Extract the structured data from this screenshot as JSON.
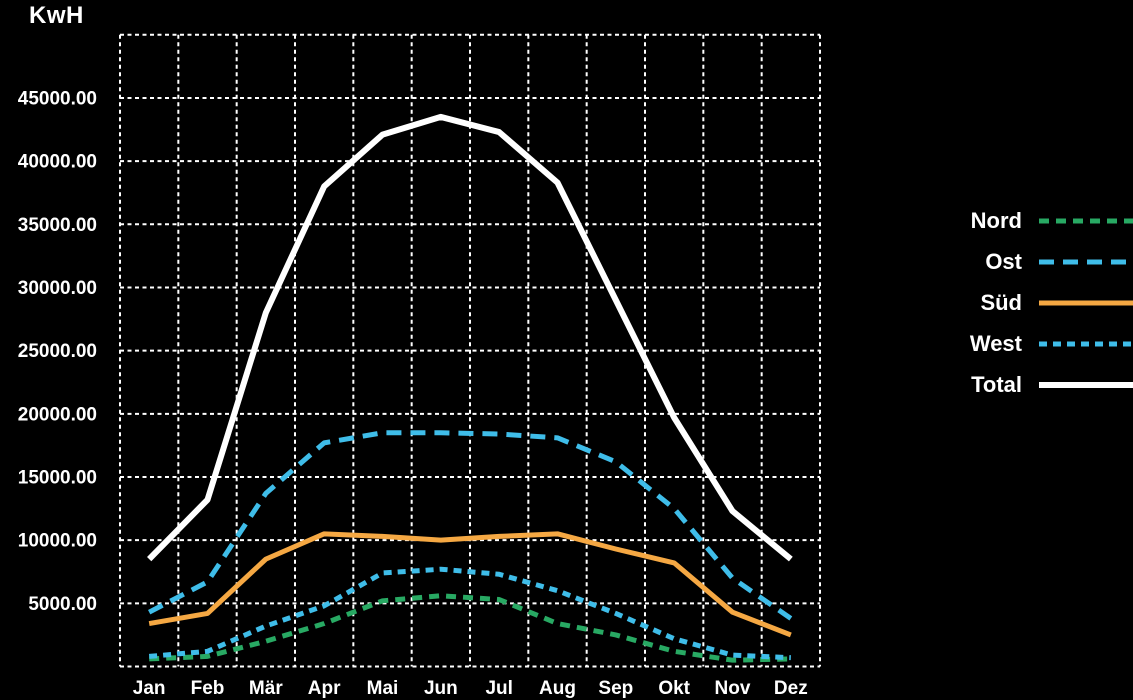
{
  "title": "KwH",
  "colors": {
    "background": "#000000",
    "grid": "#ffffff",
    "text": "#ffffff",
    "nord": "#28a963",
    "ost_west": "#3fbde9",
    "sued": "#f5a843",
    "total": "#ffffff"
  },
  "legend": {
    "position": "right",
    "entries": [
      "Nord",
      "Ost",
      "Süd",
      "West",
      "Total"
    ]
  },
  "chart_data": {
    "type": "line",
    "title": "KwH",
    "xlabel": "",
    "ylabel": "KwH",
    "grid": true,
    "grid_step": 5000,
    "ylim": [
      0,
      50000
    ],
    "x_categories": [
      "Jan",
      "Feb",
      "Mär",
      "Apr",
      "Mai",
      "Jun",
      "Jul",
      "Aug",
      "Sep",
      "Okt",
      "Nov",
      "Dez"
    ],
    "y_ticks": [
      "5000.00",
      "10000.00",
      "15000.00",
      "20000.00",
      "25000.00",
      "30000.00",
      "35000.00",
      "40000.00",
      "45000.00"
    ],
    "series": [
      {
        "name": "Nord",
        "color": "#28a963",
        "dash": "10 7",
        "width": 5,
        "values": [
          600,
          800,
          2000,
          3400,
          5200,
          5600,
          5300,
          3400,
          2500,
          1200,
          500,
          600
        ]
      },
      {
        "name": "Ost",
        "color": "#3fbde9",
        "dash": "15 9",
        "width": 5,
        "values": [
          4300,
          6700,
          13700,
          17700,
          18500,
          18500,
          18400,
          18100,
          16200,
          12500,
          7000,
          3800
        ]
      },
      {
        "name": "Süd",
        "color": "#f5a843",
        "dash": "none",
        "width": 5,
        "values": [
          3400,
          4200,
          8500,
          10500,
          10300,
          10000,
          10300,
          10500,
          9300,
          8200,
          4300,
          2500
        ]
      },
      {
        "name": "West",
        "color": "#3fbde9",
        "dash": "8 6",
        "width": 5,
        "values": [
          800,
          1200,
          3200,
          4800,
          7400,
          7700,
          7300,
          6000,
          4200,
          2200,
          900,
          700
        ]
      },
      {
        "name": "Total",
        "color": "#ffffff",
        "dash": "none",
        "width": 6,
        "values": [
          8500,
          13200,
          28000,
          38000,
          42100,
          43500,
          42300,
          38300,
          29000,
          19700,
          12300,
          8500
        ]
      }
    ]
  }
}
